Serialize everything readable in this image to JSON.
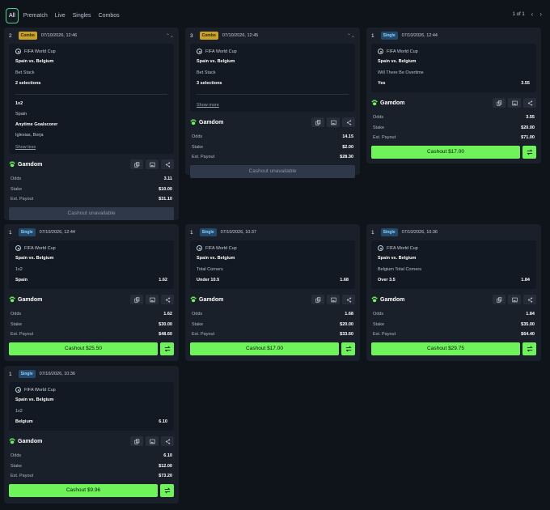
{
  "tabs": [
    {
      "label": "All"
    },
    {
      "label": "Prematch"
    },
    {
      "label": "Live"
    },
    {
      "label": "Singles"
    },
    {
      "label": "Combos"
    }
  ],
  "pager": {
    "text": "1 of 1"
  },
  "brand_name": "Gamdom",
  "labels": {
    "odds": "Odds",
    "stake": "Stake",
    "payout": "Est. Payout"
  },
  "cards": [
    {
      "num": "2",
      "type": "Combo",
      "date": "07/10/2026, 12:46",
      "competition": "FIFA World Cup",
      "match": "Spain vs. Belgium",
      "market": "Bet Stack",
      "selections": "2 selections",
      "legs": [
        {
          "pick": "1x2",
          "value": "Spain"
        },
        {
          "pick": "Anytime Goalscorer",
          "value": "Iglesias, Borja"
        }
      ],
      "toggle": "Show less",
      "odds": "3.11",
      "stake": "$10.00",
      "payout": "$31.10",
      "action": "Cashout unavailable"
    },
    {
      "num": "3",
      "type": "Combo",
      "date": "07/10/2026, 12:45",
      "competition": "FIFA World Cup",
      "match": "Spain vs. Belgium",
      "market": "Bet Stack",
      "selections": "3 selections",
      "toggle": "Show more",
      "odds": "14.15",
      "stake": "$2.00",
      "payout": "$28.30",
      "action": "Cashout unavailable"
    },
    {
      "num": "1",
      "type": "Single",
      "date": "07/10/2026, 12:44",
      "competition": "FIFA World Cup",
      "match": "Spain vs. Belgium",
      "market": "Will There Be Overtime",
      "selection": "Yes",
      "sel_odds": "3.55",
      "odds": "3.55",
      "stake": "$20.00",
      "payout": "$71.00",
      "action": "Cashout $17.00"
    },
    {
      "num": "1",
      "type": "Single",
      "date": "07/10/2026, 12:44",
      "competition": "FIFA World Cup",
      "match": "Spain vs. Belgium",
      "market": "1x2",
      "selection": "Spain",
      "sel_odds": "1.62",
      "odds": "1.62",
      "stake": "$30.00",
      "payout": "$48.60",
      "action": "Cashout $25.50"
    },
    {
      "num": "1",
      "type": "Single",
      "date": "07/10/2026, 10:37",
      "competition": "FIFA World Cup",
      "match": "Spain vs. Belgium",
      "market": "Total Corners",
      "selection": "Under 10.5",
      "sel_odds": "1.68",
      "odds": "1.68",
      "stake": "$20.00",
      "payout": "$33.60",
      "action": "Cashout $17.00"
    },
    {
      "num": "1",
      "type": "Single",
      "date": "07/10/2026, 10:36",
      "competition": "FIFA World Cup",
      "match": "Spain vs. Belgium",
      "market": "Belgium Total Corners",
      "selection": "Over 3.5",
      "sel_odds": "1.84",
      "odds": "1.84",
      "stake": "$35.00",
      "payout": "$64.40",
      "action": "Cashout $29.75"
    },
    {
      "num": "1",
      "type": "Single",
      "date": "07/10/2026, 10:36",
      "competition": "FIFA World Cup",
      "match": "Spain vs. Belgium",
      "market": "1x2",
      "selection": "Belgium",
      "sel_odds": "6.10",
      "odds": "6.10",
      "stake": "$12.00",
      "payout": "$73.20",
      "action": "Cashout $9.96"
    }
  ],
  "colors": {
    "background": "#0f141b",
    "card": "#1a202a",
    "cashout_green": "#6ff35a",
    "active_tab_border": "#4bd18a",
    "combo_badge": "#c9a227",
    "single_badge": "#234a6b"
  },
  "icons": [
    "copy-icon",
    "image-icon",
    "share-icon",
    "swap-icon",
    "paw-icon",
    "soccer-ball-icon",
    "chevron-icon"
  ]
}
